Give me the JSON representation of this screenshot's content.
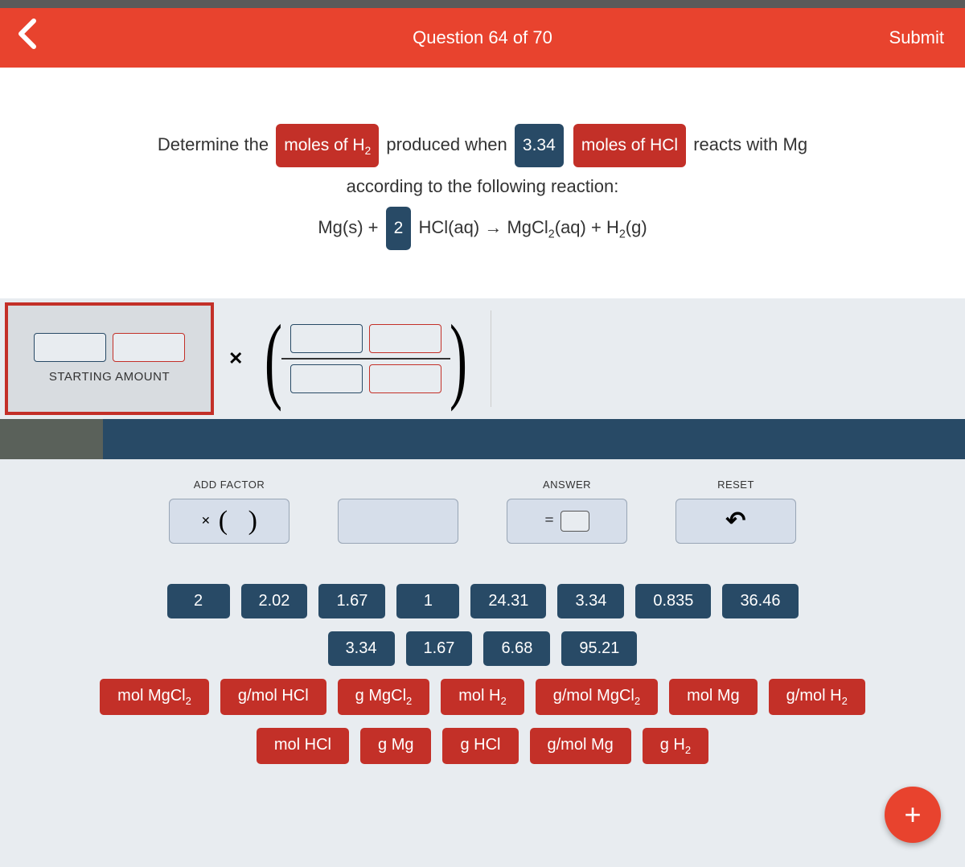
{
  "header": {
    "title": "Question 64 of 70",
    "submit": "Submit"
  },
  "question": {
    "line1_a": "Determine the",
    "chip1": "moles of H",
    "line1_b": "produced when",
    "chip2": "3.34",
    "chip3": "moles of HCl",
    "line1_c": "reacts with Mg",
    "line2": "according to the following reaction:",
    "eq_a": "Mg(s) +",
    "eq_coeff": "2",
    "eq_b": "HCl(aq) → MgCl",
    "eq_c": "(aq) + H",
    "eq_d": "(g)"
  },
  "starting_label": "STARTING AMOUNT",
  "controls": {
    "add_factor": "ADD FACTOR",
    "answer": "ANSWER",
    "reset": "RESET",
    "equals": "="
  },
  "tiles_num_row1": [
    "2",
    "2.02",
    "1.67",
    "1",
    "24.31",
    "3.34",
    "0.835",
    "36.46"
  ],
  "tiles_num_row2": [
    "3.34",
    "1.67",
    "6.68",
    "95.21"
  ],
  "tiles_unit_row1": [
    {
      "pre": "mol MgCl",
      "sub": "2"
    },
    {
      "pre": "g/mol HCl",
      "sub": ""
    },
    {
      "pre": "g MgCl",
      "sub": "2"
    },
    {
      "pre": "mol H",
      "sub": "2"
    },
    {
      "pre": "g/mol MgCl",
      "sub": "2"
    },
    {
      "pre": "mol Mg",
      "sub": ""
    },
    {
      "pre": "g/mol H",
      "sub": "2"
    }
  ],
  "tiles_unit_row2": [
    {
      "pre": "mol HCl",
      "sub": ""
    },
    {
      "pre": "g Mg",
      "sub": ""
    },
    {
      "pre": "g HCl",
      "sub": ""
    },
    {
      "pre": "g/mol Mg",
      "sub": ""
    },
    {
      "pre": "g H",
      "sub": "2"
    }
  ],
  "colors": {
    "header": "#e8432e",
    "chip_red": "#c33028",
    "chip_blue": "#284a66",
    "panel": "#e8ecf0",
    "ctrl_btn": "#d6deea"
  }
}
